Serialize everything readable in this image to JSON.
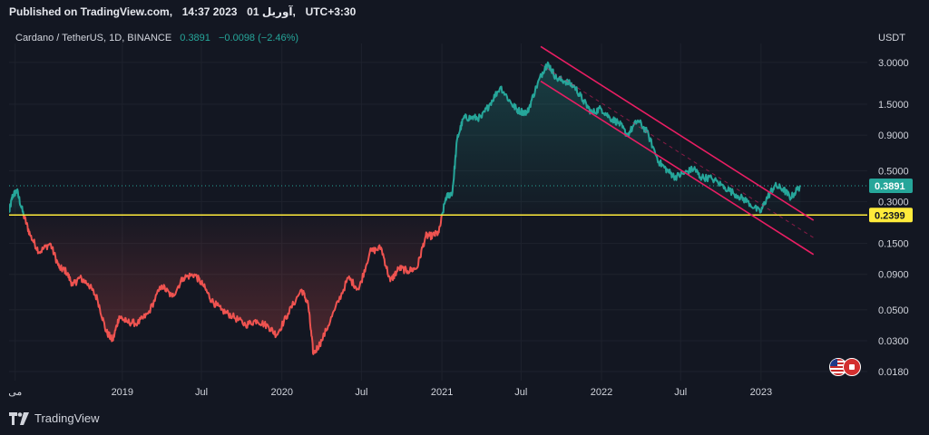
{
  "header": {
    "published_on": "Published on TradingView.com,",
    "published_time": "14:37 2023",
    "published_date": "آوریل 01,",
    "published_tz": "UTC+3:30"
  },
  "symbol": {
    "name": "Cardano / TetherUS, 1D, BINANCE",
    "price": "0.3891",
    "change": "−0.0098 (−2.46%)"
  },
  "currency": "USDT",
  "footer": {
    "brand": "TradingView"
  },
  "colors": {
    "background": "#131722",
    "up": "#26a69a",
    "down": "#ef5350",
    "channel": "#e91e63",
    "support": "#ffeb3b"
  },
  "chart_data": {
    "type": "line",
    "yscale": "log",
    "ylim": [
      0.0155,
      4.1
    ],
    "ytick_labels": [
      "3.0000",
      "1.5000",
      "0.9000",
      "0.5000",
      "0.3000",
      "0.1500",
      "0.0900",
      "0.0500",
      "0.0300",
      "0.0180"
    ],
    "yticks": [
      3.0,
      1.5,
      0.9,
      0.5,
      0.3,
      0.15,
      0.09,
      0.05,
      0.03,
      0.018
    ],
    "xlim": [
      "2018-04-17",
      "2023-09-01"
    ],
    "xtick_labels": [
      "می",
      "2019",
      "Jul",
      "2020",
      "Jul",
      "2021",
      "Jul",
      "2022",
      "Jul",
      "2023"
    ],
    "xticks": [
      "2018-05-01",
      "2019-01-01",
      "2019-07-01",
      "2020-01-01",
      "2020-07-01",
      "2021-01-01",
      "2021-07-01",
      "2022-01-01",
      "2022-07-01",
      "2023-01-01"
    ],
    "support_level": 0.2399,
    "support_label": "0.2399",
    "last_price": 0.3891,
    "last_price_label": "0.3891",
    "series": [
      {
        "x": [
          "2018-04-17",
          "2018-04-25",
          "2018-05-05",
          "2018-05-20",
          "2018-06-05",
          "2018-06-25",
          "2018-07-20",
          "2018-08-10",
          "2018-08-25",
          "2018-09-10",
          "2018-09-25",
          "2018-10-15",
          "2018-11-05",
          "2018-11-25",
          "2018-12-10",
          "2018-12-25",
          "2019-01-10",
          "2019-02-05",
          "2019-03-01",
          "2019-04-01",
          "2019-04-25",
          "2019-05-20",
          "2019-06-15",
          "2019-07-05",
          "2019-07-25",
          "2019-08-15",
          "2019-09-10",
          "2019-10-10",
          "2019-11-05",
          "2019-12-01",
          "2019-12-20",
          "2020-01-15",
          "2020-02-15",
          "2020-03-01",
          "2020-03-13",
          "2020-04-01",
          "2020-05-01",
          "2020-06-01",
          "2020-06-25",
          "2020-07-20",
          "2020-08-15",
          "2020-09-05",
          "2020-09-25",
          "2020-10-15",
          "2020-11-05",
          "2020-11-25",
          "2020-12-10",
          "2020-12-25",
          "2021-01-10",
          "2021-01-25",
          "2021-02-05",
          "2021-02-20",
          "2021-03-10",
          "2021-04-01",
          "2021-04-20",
          "2021-05-15",
          "2021-06-10",
          "2021-06-25",
          "2021-07-15",
          "2021-08-05",
          "2021-08-25",
          "2021-09-02",
          "2021-09-20",
          "2021-10-10",
          "2021-11-01",
          "2021-11-20",
          "2021-12-10",
          "2021-12-31",
          "2022-01-20",
          "2022-02-10",
          "2022-03-01",
          "2022-03-25",
          "2022-04-15",
          "2022-05-12",
          "2022-06-01",
          "2022-06-18",
          "2022-07-10",
          "2022-08-01",
          "2022-08-15",
          "2022-09-10",
          "2022-10-10",
          "2022-11-09",
          "2022-12-01",
          "2022-12-30",
          "2023-01-15",
          "2023-02-01",
          "2023-02-20",
          "2023-03-10",
          "2023-04-01"
        ],
        "y": [
          0.25,
          0.33,
          0.36,
          0.24,
          0.17,
          0.13,
          0.15,
          0.1,
          0.095,
          0.075,
          0.085,
          0.077,
          0.06,
          0.035,
          0.03,
          0.045,
          0.041,
          0.04,
          0.047,
          0.075,
          0.062,
          0.085,
          0.09,
          0.075,
          0.058,
          0.05,
          0.045,
          0.039,
          0.042,
          0.038,
          0.033,
          0.047,
          0.07,
          0.055,
          0.024,
          0.03,
          0.05,
          0.085,
          0.07,
          0.13,
          0.14,
          0.08,
          0.1,
          0.095,
          0.1,
          0.17,
          0.17,
          0.18,
          0.32,
          0.35,
          0.85,
          1.2,
          1.2,
          1.2,
          1.5,
          2.0,
          1.5,
          1.35,
          1.3,
          2.0,
          2.8,
          2.9,
          2.3,
          2.2,
          2.0,
          1.6,
          1.3,
          1.4,
          1.2,
          1.1,
          0.9,
          1.15,
          0.95,
          0.58,
          0.5,
          0.45,
          0.48,
          0.52,
          0.45,
          0.44,
          0.38,
          0.33,
          0.3,
          0.25,
          0.32,
          0.39,
          0.37,
          0.32,
          0.39
        ]
      }
    ],
    "channel": {
      "upper": {
        "x": [
          "2021-08-15",
          "2023-05-01"
        ],
        "y": [
          3.9,
          0.22
        ]
      },
      "lower": {
        "x": [
          "2021-08-15",
          "2023-05-01"
        ],
        "y": [
          2.2,
          0.125
        ]
      },
      "mid": {
        "x": [
          "2021-08-15",
          "2023-05-01"
        ],
        "y": [
          2.9,
          0.165
        ]
      }
    }
  }
}
